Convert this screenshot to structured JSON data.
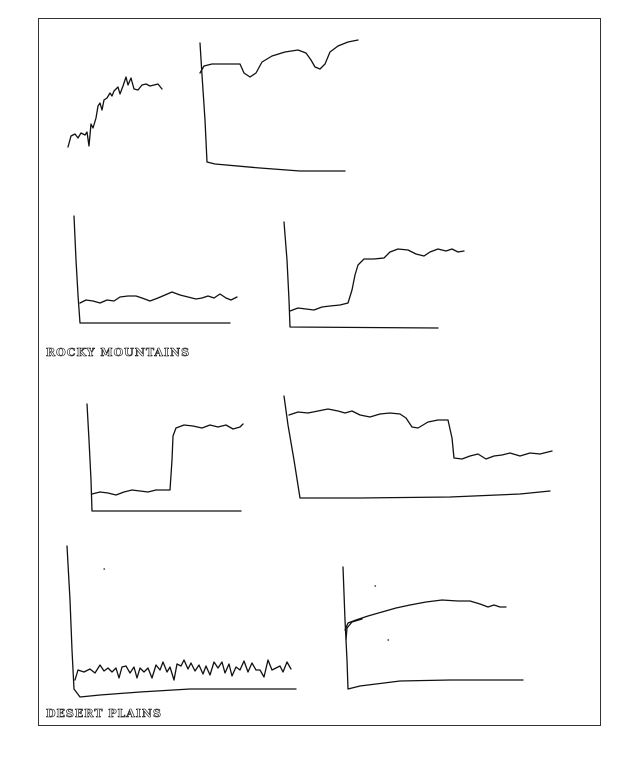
{
  "captions": {
    "rocky": "ROCKY MOUNTAINS",
    "desert": "DESERT PLAINS"
  },
  "sketches": [
    {
      "id": "sketch-1",
      "group": "rocky"
    },
    {
      "id": "sketch-2",
      "group": "rocky"
    },
    {
      "id": "sketch-3",
      "group": "rocky"
    },
    {
      "id": "sketch-4",
      "group": "rocky"
    },
    {
      "id": "sketch-5",
      "group": "desert"
    },
    {
      "id": "sketch-6",
      "group": "desert"
    },
    {
      "id": "sketch-7",
      "group": "desert"
    },
    {
      "id": "sketch-8",
      "group": "desert"
    }
  ],
  "colors": {
    "stroke": "#111111",
    "border": "#333333",
    "background": "#ffffff"
  }
}
